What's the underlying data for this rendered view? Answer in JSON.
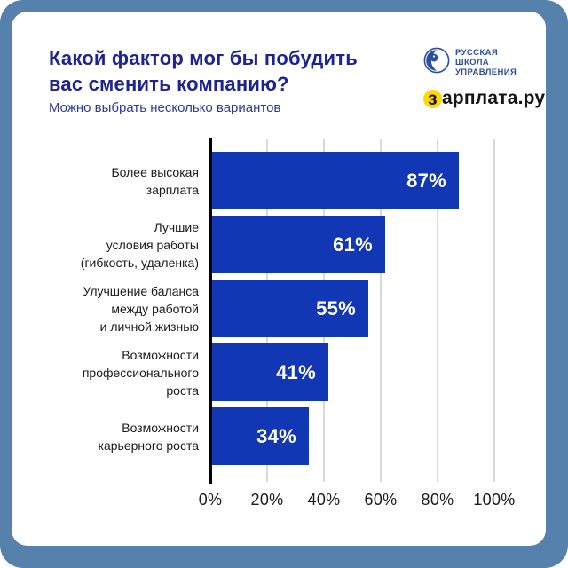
{
  "header": {
    "title": "Какой фактор мог бы побудить вас сменить компанию?",
    "title_lines": [
      "Какой фактор мог бы побудить",
      "вас сменить компанию?"
    ],
    "subtitle": "Можно выбрать несколько вариантов"
  },
  "branding": {
    "rsu_name_lines": [
      "РУССКАЯ",
      "ШКОЛА",
      "УПРАВЛЕНИЯ"
    ],
    "partner_accent_letter": "з",
    "partner_rest": "арплата.ру",
    "partner_full": "зарплата.ру"
  },
  "colors": {
    "frame": "#5681ac",
    "bar": "#1237b4",
    "title": "#1d2394",
    "subtitle": "#2a3aa5",
    "category_label": "#1b1b1b",
    "gridline": "#d9d9d9",
    "axis": "#000000",
    "value_label": "#ffffff",
    "partner_accent": "#ffd800",
    "rsu_blue": "#2b4fa3"
  },
  "chart_data": {
    "type": "bar",
    "orientation": "horizontal",
    "title": "Какой фактор мог бы побудить вас сменить компанию?",
    "subtitle": "Можно выбрать несколько вариантов",
    "categories": [
      "Более высокая зарплата",
      "Лучшие условия работы (гибкость, удаленка)",
      "Улучшение баланса между работой и личной жизнью",
      "Возможности профессионального роста",
      "Возможности карьерного роста"
    ],
    "category_lines": [
      [
        "Более высокая",
        "зарплата"
      ],
      [
        "Лучшие",
        "условия работы",
        "(гибкость, удаленка)"
      ],
      [
        "Улучшение баланса",
        "между работой",
        "и личной жизнью"
      ],
      [
        "Возможности",
        "профессионального",
        "роста"
      ],
      [
        "Возможности",
        "карьерного роста"
      ]
    ],
    "values": [
      87,
      61,
      55,
      41,
      34
    ],
    "value_labels": [
      "87%",
      "61%",
      "55%",
      "41%",
      "34%"
    ],
    "x_ticks": [
      "0%",
      "20%",
      "40%",
      "60%",
      "80%",
      "100%"
    ],
    "x_tick_values": [
      0,
      20,
      40,
      60,
      80,
      100
    ],
    "xlim": [
      0,
      100
    ],
    "grid": true,
    "legend": false
  }
}
